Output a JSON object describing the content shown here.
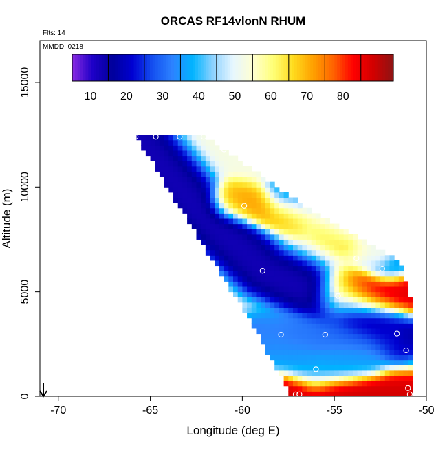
{
  "chart_data": {
    "type": "heatmap",
    "title": "ORCAS RF14vlonN RHUM",
    "flights_label": "Flts: 14",
    "date_label": "MMDD: 0218",
    "xlabel": "Longitude (deg E)",
    "ylabel": "Altitude (m)",
    "xlim": [
      -71,
      -50
    ],
    "ylim": [
      0,
      17000
    ],
    "x_ticks": [
      -70,
      -65,
      -60,
      -55,
      -50
    ],
    "y_ticks": [
      0,
      5000,
      10000,
      15000
    ],
    "grid": false,
    "colorbar": {
      "placement": "top-inside",
      "range": [
        0,
        89
      ],
      "ticks": [
        10,
        20,
        30,
        40,
        50,
        60,
        70,
        80
      ],
      "colors": [
        "#8a2be2",
        "#1e00c8",
        "#00009b",
        "#0000d2",
        "#1450f0",
        "#2c82ff",
        "#00b4ff",
        "#8cd2ff",
        "#e6f6ff",
        "#ffffd2",
        "#ffff78",
        "#ffdc1e",
        "#ffa000",
        "#ff6400",
        "#ff0000",
        "#d20000",
        "#8c1414"
      ]
    },
    "domain_polygon": {
      "lon": [
        -65.8,
        -62.2,
        -61.0,
        -57.0,
        -54.0,
        -51.5,
        -50.8,
        -50.8,
        -57.3,
        -59.5
      ],
      "alt": [
        12450,
        12450,
        11800,
        9300,
        7800,
        6500,
        4500,
        0,
        0,
        3500
      ]
    },
    "field_features": [
      {
        "name": "dry band",
        "points": [
          [
            -65.6,
            12300
          ],
          [
            -62.5,
            9000
          ],
          [
            -58.8,
            6000
          ],
          [
            -51.5,
            3000
          ]
        ],
        "rh": 5,
        "width": 0.6
      },
      {
        "name": "dry band",
        "points": [
          [
            -57.5,
            9500
          ],
          [
            -55.5,
            8800
          ],
          [
            -53.5,
            8000
          ],
          [
            -52,
            6500
          ]
        ],
        "rh": 25,
        "width": 0.5
      },
      {
        "name": "moist layer",
        "points": [
          [
            -60.5,
            9300
          ],
          [
            -56,
            8600
          ],
          [
            -52.5,
            7000
          ]
        ],
        "rh": 68,
        "width": 0.45
      },
      {
        "name": "moist layer",
        "points": [
          [
            -54.5,
            4800
          ],
          [
            -51,
            4800
          ]
        ],
        "rh": 84,
        "width": 0.55
      },
      {
        "name": "dry band",
        "points": [
          [
            -59,
            2900
          ],
          [
            -52,
            2900
          ]
        ],
        "rh": 25,
        "width": 0.55
      },
      {
        "name": "moist layer",
        "points": [
          [
            -57.5,
            100
          ],
          [
            -51,
            100
          ]
        ],
        "rh": 86,
        "width": 0.5
      },
      {
        "name": "dry band",
        "points": [
          [
            -58.5,
            2600
          ],
          [
            -56,
            1200
          ],
          [
            -53.5,
            1800
          ]
        ],
        "rh": 30,
        "width": 0.5
      }
    ],
    "flight_points": {
      "lon": [
        -65.8,
        -64.7,
        -63.4,
        -62.1,
        -61.0,
        -59.9,
        -58.9,
        -57.9,
        -55.5,
        -53.8,
        -52.4,
        -51.6,
        -51.1,
        -51.0,
        -57.1,
        -56.0,
        -54.8,
        -50.9,
        -56.9
      ],
      "alt": [
        12400,
        12400,
        12400,
        12400,
        11800,
        9100,
        6000,
        2950,
        2950,
        6600,
        6100,
        3000,
        2200,
        400,
        100,
        1300,
        4800,
        100,
        100
      ]
    }
  }
}
